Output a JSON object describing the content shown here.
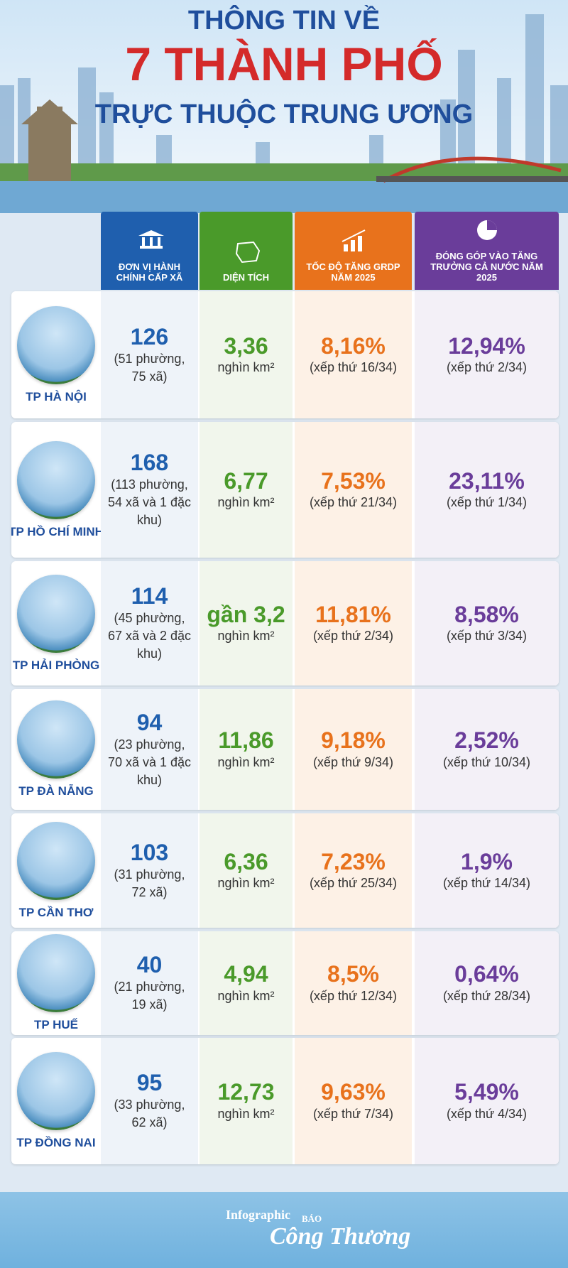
{
  "header": {
    "title_line1": "THÔNG TIN VỀ",
    "title_line2": "7 THÀNH PHỐ",
    "title_line3": "TRỰC THUỘC TRUNG ƯƠNG"
  },
  "table": {
    "columns": [
      "ĐƠN VỊ HÀNH CHÍNH CẤP XÃ",
      "DIỆN TÍCH",
      "TỐC ĐỘ TĂNG GRDP NĂM 2025",
      "ĐÓNG GÓP VÀO TĂNG TRƯỞNG CẢ NƯỚC NĂM 2025"
    ],
    "rows": [
      {
        "city": "TP HÀ NỘI",
        "units": "126",
        "units_detail": "(51 phường, 75 xã)",
        "area": "3,36",
        "area_unit": "nghìn km²",
        "growth": "8,16%",
        "growth_rank": "(xếp thứ 16/34)",
        "contribution": "12,94%",
        "contribution_rank": "(xếp thứ 2/34)"
      },
      {
        "city": "TP HỒ CHÍ MINH",
        "units": "168",
        "units_detail": "(113 phường, 54 xã và 1 đặc khu)",
        "area": "6,77",
        "area_unit": "nghìn km²",
        "growth": "7,53%",
        "growth_rank": "(xếp thứ 21/34)",
        "contribution": "23,11%",
        "contribution_rank": "(xếp thứ 1/34)"
      },
      {
        "city": "TP HẢI PHÒNG",
        "units": "114",
        "units_detail": "(45 phường, 67 xã và 2 đặc khu)",
        "area": "gần 3,2",
        "area_unit": "nghìn km²",
        "growth": "11,81%",
        "growth_rank": "(xếp thứ 2/34)",
        "contribution": "8,58%",
        "contribution_rank": "(xếp thứ 3/34)"
      },
      {
        "city": "TP ĐÀ NẴNG",
        "units": "94",
        "units_detail": "(23 phường, 70 xã và 1 đặc khu)",
        "area": "11,86",
        "area_unit": "nghìn km²",
        "growth": "9,18%",
        "growth_rank": "(xếp thứ 9/34)",
        "contribution": "2,52%",
        "contribution_rank": "(xếp thứ 10/34)"
      },
      {
        "city": "TP CẦN THƠ",
        "units": "103",
        "units_detail": "(31 phường, 72 xã)",
        "area": "6,36",
        "area_unit": "nghìn km²",
        "growth": "7,23%",
        "growth_rank": "(xếp thứ 25/34)",
        "contribution": "1,9%",
        "contribution_rank": "(xếp thứ 14/34)"
      },
      {
        "city": "TP HUẾ",
        "units": "40",
        "units_detail": "(21 phường, 19 xã)",
        "area": "4,94",
        "area_unit": "nghìn km²",
        "growth": "8,5%",
        "growth_rank": "(xếp thứ 12/34)",
        "contribution": "0,64%",
        "contribution_rank": "(xếp thứ 28/34)"
      },
      {
        "city": "TP ĐỒNG NAI",
        "units": "95",
        "units_detail": "(33 phường, 62 xã)",
        "area": "12,73",
        "area_unit": "nghìn km²",
        "growth": "9,63%",
        "growth_rank": "(xếp thứ 7/34)",
        "contribution": "5,49%",
        "contribution_rank": "(xếp thứ 4/34)"
      }
    ]
  },
  "footer": {
    "label": "Infographic",
    "brand_small": "BÁO",
    "brand": "Công Thương"
  }
}
